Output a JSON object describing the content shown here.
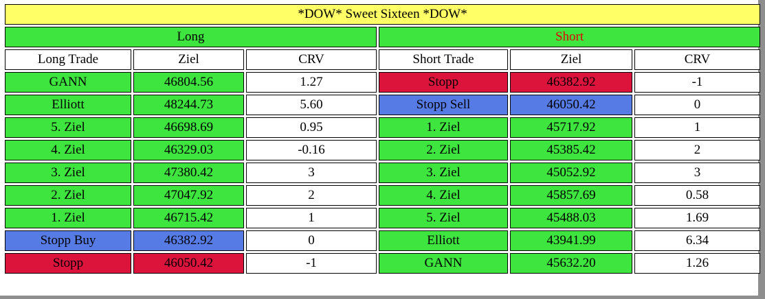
{
  "title": "*DOW* Sweet Sixteen *DOW*",
  "colors": {
    "green": "#3FE53F",
    "red": "#DC143C",
    "blue": "#567BE5",
    "yellow": "#FFFF66",
    "frame": "#8E8E8E",
    "short_label_text": "#E00000"
  },
  "sections": [
    {
      "label": "Long",
      "headers": [
        "Long Trade",
        "Ziel",
        "CRV"
      ],
      "rows": [
        {
          "trade": "GANN",
          "ziel": "46804.56",
          "crv": "1.27",
          "color": "green"
        },
        {
          "trade": "Elliott",
          "ziel": "48244.73",
          "crv": "5.60",
          "color": "green"
        },
        {
          "trade": "5. Ziel",
          "ziel": "46698.69",
          "crv": "0.95",
          "color": "green"
        },
        {
          "trade": "4. Ziel",
          "ziel": "46329.03",
          "crv": "-0.16",
          "color": "green"
        },
        {
          "trade": "3. Ziel",
          "ziel": "47380.42",
          "crv": "3",
          "color": "green"
        },
        {
          "trade": "2. Ziel",
          "ziel": "47047.92",
          "crv": "2",
          "color": "green"
        },
        {
          "trade": "1. Ziel",
          "ziel": "46715.42",
          "crv": "1",
          "color": "green"
        },
        {
          "trade": "Stopp Buy",
          "ziel": "46382.92",
          "crv": "0",
          "color": "blue"
        },
        {
          "trade": "Stopp",
          "ziel": "46050.42",
          "crv": "-1",
          "color": "red"
        }
      ]
    },
    {
      "label": "Short",
      "headers": [
        "Short Trade",
        "Ziel",
        "CRV"
      ],
      "rows": [
        {
          "trade": "Stopp",
          "ziel": "46382.92",
          "crv": "-1",
          "color": "red"
        },
        {
          "trade": "Stopp Sell",
          "ziel": "46050.42",
          "crv": "0",
          "color": "blue"
        },
        {
          "trade": "1. Ziel",
          "ziel": "45717.92",
          "crv": "1",
          "color": "green"
        },
        {
          "trade": "2. Ziel",
          "ziel": "45385.42",
          "crv": "2",
          "color": "green"
        },
        {
          "trade": "3. Ziel",
          "ziel": "45052.92",
          "crv": "3",
          "color": "green"
        },
        {
          "trade": "4. Ziel",
          "ziel": "45857.69",
          "crv": "0.58",
          "color": "green"
        },
        {
          "trade": "5. Ziel",
          "ziel": "45488.03",
          "crv": "1.69",
          "color": "green"
        },
        {
          "trade": "Elliott",
          "ziel": "43941.99",
          "crv": "6.34",
          "color": "green"
        },
        {
          "trade": "GANN",
          "ziel": "45632.20",
          "crv": "1.26",
          "color": "green"
        }
      ]
    }
  ]
}
